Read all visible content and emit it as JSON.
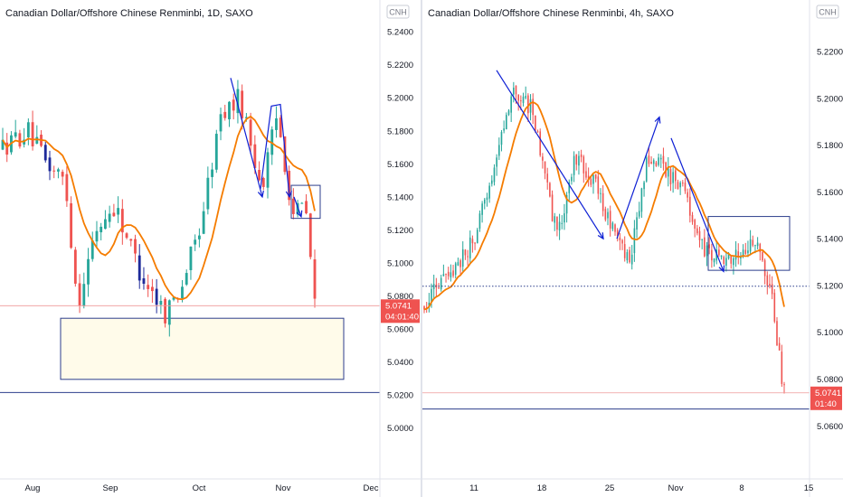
{
  "chart_data": [
    {
      "type": "candlestick",
      "title": "Canadian Dollar/Offshore Chinese Renminbi, 1D, SAXO",
      "currency_label": "CNH",
      "ylim": [
        4.99,
        5.245
      ],
      "yticks": [
        "5.2400",
        "5.2200",
        "5.2000",
        "5.1800",
        "5.1600",
        "5.1400",
        "5.1200",
        "5.1000",
        "5.0800",
        "5.0600",
        "5.0400",
        "5.0200",
        "5.0000"
      ],
      "xtick_labels": [
        "Aug",
        "Sep",
        "Oct",
        "Nov",
        "Dec"
      ],
      "last_price": "5.0741",
      "countdown": "04:01:40",
      "moving_average": "orange",
      "support_level": 5.0215,
      "colors": {
        "up": "#26a69a",
        "down": "#ef5350",
        "other": "#1e2a9a",
        "ma": "#f57c00",
        "drawing": "#0d1fd4",
        "box_border": "#2d3e8c",
        "box_fill": "#fffbea"
      }
    },
    {
      "type": "candlestick",
      "title": "Canadian Dollar/Offshore Chinese Renminbi, 4h, SAXO",
      "currency_label": "CNH",
      "ylim": [
        5.052,
        5.232
      ],
      "yticks": [
        "5.2200",
        "5.2000",
        "5.1800",
        "5.1600",
        "5.1400",
        "5.1200",
        "5.1000",
        "5.0800",
        "5.0600"
      ],
      "xtick_labels": [
        "11",
        "18",
        "25",
        "Nov",
        "8",
        "15"
      ],
      "last_price": "5.0741",
      "countdown": "01:40",
      "moving_average": "orange",
      "support_level": 5.0672,
      "dotted_level": 5.1197,
      "colors": {
        "up": "#26a69a",
        "down": "#ef5350",
        "ma": "#f57c00",
        "drawing": "#0d1fd4",
        "box_border": "#2d3e8c"
      }
    }
  ]
}
